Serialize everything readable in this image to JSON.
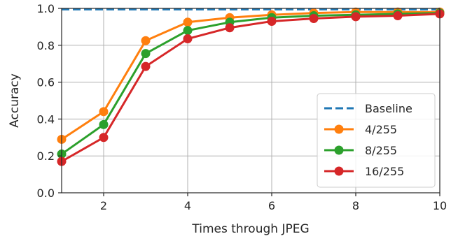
{
  "chart_data": {
    "type": "line",
    "xlabel": "Times through JPEG",
    "ylabel": "Accuracy",
    "xlim": [
      1,
      10
    ],
    "ylim": [
      0.0,
      1.0
    ],
    "xticks": [
      2,
      4,
      6,
      8,
      10
    ],
    "xtick_labels": [
      "2",
      "4",
      "6",
      "8",
      "10"
    ],
    "yticks": [
      0.0,
      0.2,
      0.4,
      0.6,
      0.8,
      1.0
    ],
    "ytick_labels": [
      "0.0",
      "0.2",
      "0.4",
      "0.6",
      "0.8",
      "1.0"
    ],
    "grid": true,
    "legend_position": "lower-right",
    "x": [
      1,
      2,
      3,
      4,
      5,
      6,
      7,
      8,
      9,
      10
    ],
    "baseline": {
      "name": "Baseline",
      "value": 0.995,
      "color": "#1f77b4",
      "style": "dashed"
    },
    "series": [
      {
        "name": "4/255",
        "color": "#ff7f0e",
        "values": [
          0.29,
          0.44,
          0.825,
          0.925,
          0.95,
          0.965,
          0.975,
          0.98,
          0.98,
          0.98
        ]
      },
      {
        "name": "8/255",
        "color": "#2ca02c",
        "values": [
          0.21,
          0.37,
          0.755,
          0.88,
          0.925,
          0.95,
          0.96,
          0.965,
          0.97,
          0.975
        ]
      },
      {
        "name": "16/255",
        "color": "#d62728",
        "values": [
          0.17,
          0.3,
          0.685,
          0.835,
          0.895,
          0.93,
          0.945,
          0.955,
          0.96,
          0.97
        ]
      }
    ]
  }
}
